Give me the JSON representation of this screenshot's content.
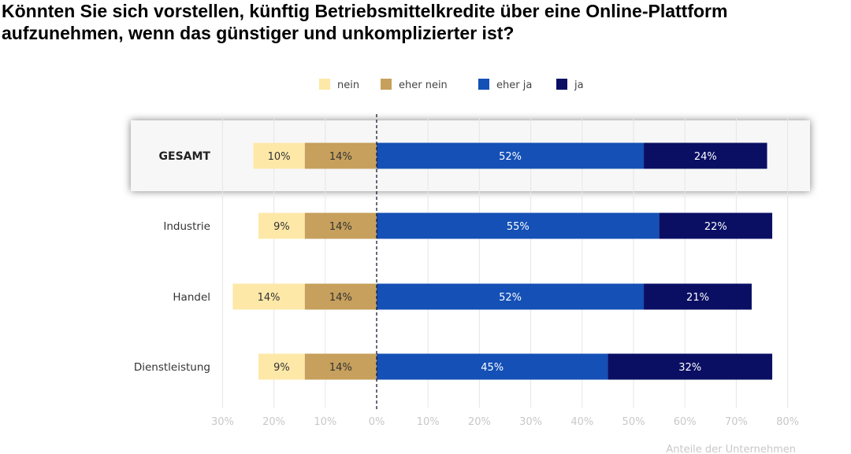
{
  "title_lines": [
    "Könnten Sie sich vorstellen, künftig Betriebsmittelkredite über eine Online-Plattform",
    "aufzunehmen, wenn das günstiger und unkomplizierter ist?"
  ],
  "chart_data": {
    "type": "bar",
    "orientation": "horizontal-diverging",
    "stacked": true,
    "categories": [
      "GESAMT",
      "Industrie",
      "Handel",
      "Dienstleistung"
    ],
    "highlighted_category": "GESAMT",
    "series": [
      {
        "name": "nein",
        "side": "negative",
        "color": "#fde8a8",
        "text_color": "#333333",
        "values": [
          10,
          9,
          14,
          9
        ],
        "labels": [
          "10%",
          "9%",
          "14%",
          "9%"
        ]
      },
      {
        "name": "eher nein",
        "side": "negative",
        "color": "#c6a05c",
        "text_color": "#333333",
        "values": [
          14,
          14,
          14,
          14
        ],
        "labels": [
          "14%",
          "14%",
          "14%",
          "14%"
        ]
      },
      {
        "name": "eher ja",
        "side": "positive",
        "color": "#1450b6",
        "text_color": "#ffffff",
        "values": [
          52,
          55,
          52,
          45
        ],
        "labels": [
          "52%",
          "55%",
          "52%",
          "45%"
        ]
      },
      {
        "name": "ja",
        "side": "positive",
        "color": "#0a0f64",
        "text_color": "#ffffff",
        "values": [
          24,
          22,
          21,
          32
        ],
        "labels": [
          "24%",
          "22%",
          "21%",
          "32%"
        ]
      }
    ],
    "xlim": [
      -30,
      80
    ],
    "x_ticks": [
      -30,
      -20,
      -10,
      0,
      10,
      20,
      30,
      40,
      50,
      60,
      70,
      80
    ],
    "x_tick_labels": [
      "30%",
      "20%",
      "10%",
      "0%",
      "10%",
      "20%",
      "30%",
      "40%",
      "50%",
      "60%",
      "70%",
      "80%"
    ],
    "xlabel": "Anteile der Unternehmen",
    "legend_position": "top-center",
    "grid": true
  }
}
